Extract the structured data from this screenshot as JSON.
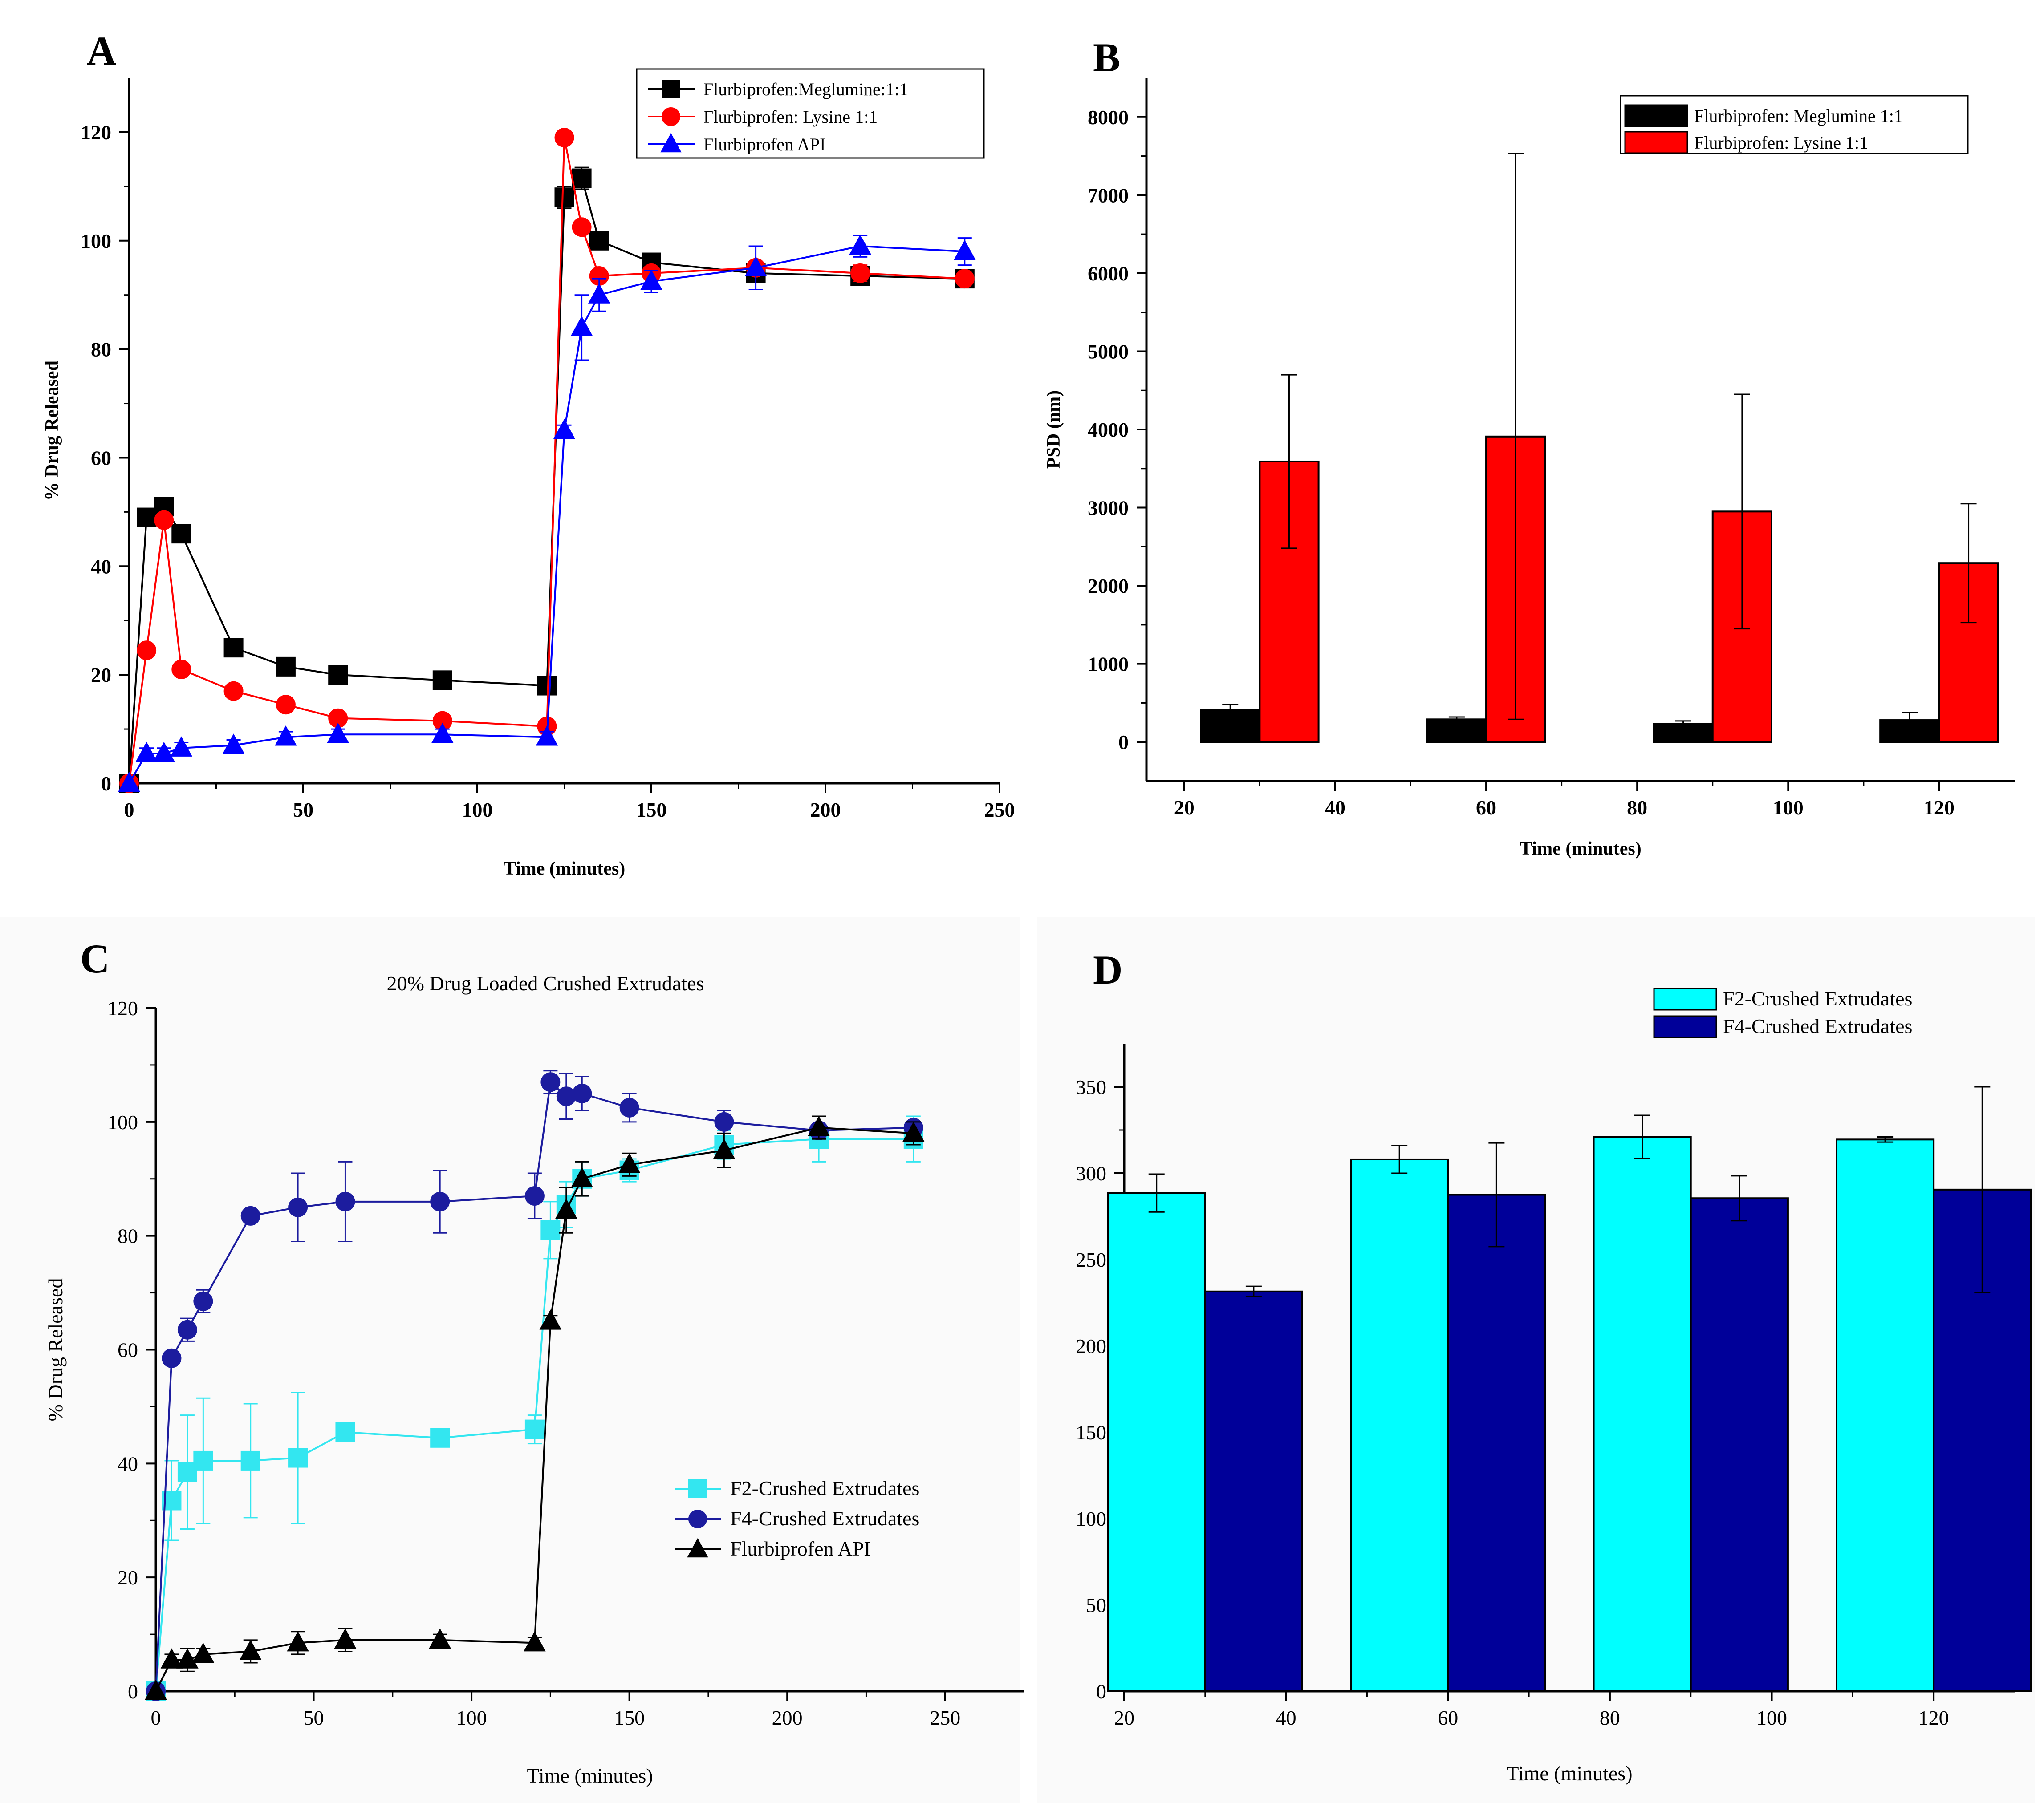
{
  "chart_data": [
    {
      "panel": "A",
      "type": "line",
      "title": "",
      "xlabel": "Time (minutes)",
      "ylabel": "% Drug Released",
      "xlim": [
        0,
        250
      ],
      "ylim": [
        0,
        130
      ],
      "xticks": [
        "0",
        "50",
        "100",
        "150",
        "200",
        "250"
      ],
      "yticks": [
        "0",
        "20",
        "40",
        "60",
        "80",
        "100",
        "120"
      ],
      "xtick_values": [
        0,
        50,
        100,
        150,
        200,
        250
      ],
      "ytick_values": [
        0,
        20,
        40,
        60,
        80,
        100,
        120
      ],
      "legend_position": "top-right",
      "series": [
        {
          "name": "Flurbiprofen:Meglumine:1:1",
          "color": "#000000",
          "marker": "square",
          "x": [
            0,
            5,
            10,
            15,
            30,
            45,
            60,
            90,
            120,
            125,
            130,
            135,
            150,
            180,
            210,
            240
          ],
          "y": [
            0,
            49,
            51,
            46,
            25,
            21.5,
            20,
            19,
            18,
            108,
            111.5,
            100,
            96,
            94,
            93.5,
            93
          ],
          "err": [
            0,
            1.5,
            1.5,
            1.5,
            1,
            1,
            1,
            1,
            1,
            2,
            2,
            1.5,
            1.5,
            1.5,
            1,
            1
          ]
        },
        {
          "name": "Flurbiprofen: Lysine 1:1",
          "color": "#ff0000",
          "marker": "circle",
          "x": [
            0,
            5,
            10,
            15,
            30,
            45,
            60,
            90,
            120,
            125,
            130,
            135,
            150,
            180,
            210,
            240
          ],
          "y": [
            0,
            24.5,
            48.5,
            21,
            17,
            14.5,
            12,
            11.5,
            10.5,
            119,
            102.5,
            93.5,
            94,
            95,
            94,
            93
          ],
          "err": [
            0,
            1,
            1,
            1,
            1,
            1,
            1,
            1,
            1,
            1,
            1,
            1,
            1,
            1,
            1.5,
            1
          ]
        },
        {
          "name": "Flurbiprofen API",
          "color": "#0000ff",
          "marker": "triangle",
          "x": [
            0,
            5,
            10,
            15,
            30,
            45,
            60,
            90,
            120,
            125,
            130,
            135,
            150,
            180,
            210,
            240
          ],
          "y": [
            0,
            5.5,
            5.5,
            6.5,
            7,
            8.5,
            9,
            9,
            8.5,
            65,
            84,
            90,
            92.5,
            95,
            99,
            98
          ],
          "err": [
            0,
            1,
            1,
            1,
            1,
            1,
            1,
            1,
            1,
            1,
            6,
            3,
            2,
            4,
            2,
            2.5
          ]
        }
      ]
    },
    {
      "panel": "B",
      "type": "bar",
      "title": "",
      "xlabel": "Time (minutes)",
      "ylabel": "PSD (nm)",
      "ylim": [
        -500,
        8500
      ],
      "xlim": [
        15,
        130
      ],
      "xticks": [
        "20",
        "40",
        "60",
        "80",
        "100",
        "120"
      ],
      "yticks": [
        "0",
        "1000",
        "2000",
        "3000",
        "4000",
        "5000",
        "6000",
        "7000",
        "8000"
      ],
      "xtick_values": [
        20,
        40,
        60,
        80,
        100,
        120
      ],
      "ytick_values": [
        0,
        1000,
        2000,
        3000,
        4000,
        5000,
        6000,
        7000,
        8000
      ],
      "legend_position": "top-right",
      "categories": [
        30,
        60,
        90,
        120
      ],
      "series": [
        {
          "name": "Flurbiprofen: Meglumine 1:1",
          "color": "#000000",
          "values": [
            410,
            290,
            230,
            280
          ],
          "err": [
            70,
            30,
            40,
            100
          ]
        },
        {
          "name": "Flurbiprofen: Lysine 1:1",
          "color": "#ff0000",
          "values": [
            3590,
            3910,
            2950,
            2290
          ],
          "err": [
            1110,
            3620,
            1500,
            760
          ]
        }
      ]
    },
    {
      "panel": "C",
      "type": "line",
      "title": "20% Drug Loaded Crushed Extrudates",
      "xlabel": "Time (minutes)",
      "ylabel": "% Drug Released",
      "xlim": [
        0,
        275
      ],
      "ylim": [
        0,
        120
      ],
      "xticks": [
        "0",
        "50",
        "100",
        "150",
        "200",
        "250"
      ],
      "yticks": [
        "0",
        "20",
        "40",
        "60",
        "80",
        "100",
        "120"
      ],
      "xtick_values": [
        0,
        50,
        100,
        150,
        200,
        250
      ],
      "ytick_values": [
        0,
        20,
        40,
        60,
        80,
        100,
        120
      ],
      "legend_position": "bottom-right",
      "series": [
        {
          "name": "F2-Crushed Extrudates",
          "color": "#33e6f0",
          "marker": "square",
          "x": [
            0,
            5,
            10,
            15,
            30,
            45,
            60,
            90,
            120,
            125,
            130,
            135,
            150,
            180,
            210,
            240
          ],
          "y": [
            0,
            33.5,
            38.5,
            40.5,
            40.5,
            41,
            45.5,
            44.5,
            46,
            81,
            85.5,
            90,
            91.5,
            96,
            97,
            97
          ],
          "err": [
            0,
            7,
            10,
            11,
            10,
            11.5,
            1,
            1.5,
            2.5,
            5,
            4,
            3,
            2,
            2.5,
            4,
            4
          ]
        },
        {
          "name": "F4-Crushed Extrudates",
          "color": "#1c1c9e",
          "marker": "circle",
          "x": [
            0,
            5,
            10,
            15,
            30,
            45,
            60,
            90,
            120,
            125,
            130,
            135,
            150,
            180,
            210,
            240
          ],
          "y": [
            0,
            58.5,
            63.5,
            68.5,
            83.5,
            85,
            86,
            86,
            87,
            107,
            104.5,
            105,
            102.5,
            100,
            98.5,
            99
          ],
          "err": [
            0,
            1,
            2,
            2,
            1,
            6,
            7,
            5.5,
            4,
            2,
            4,
            3,
            2.5,
            2,
            1,
            1
          ]
        },
        {
          "name": "Flurbiprofen API",
          "color": "#000000",
          "marker": "triangle",
          "x": [
            0,
            5,
            10,
            15,
            30,
            45,
            60,
            90,
            120,
            125,
            130,
            135,
            150,
            180,
            210,
            240
          ],
          "y": [
            0,
            5.5,
            5.5,
            6.5,
            7,
            8.5,
            9,
            9,
            8.5,
            65,
            84.5,
            90,
            92.5,
            95,
            99,
            98
          ],
          "err": [
            0,
            1,
            2,
            1,
            2,
            2,
            2,
            1,
            1,
            1,
            4,
            3,
            2,
            3,
            2,
            2
          ]
        }
      ]
    },
    {
      "panel": "D",
      "type": "bar",
      "title": "",
      "xlabel": "Time (minutes)",
      "ylabel": "",
      "ylim": [
        0,
        375
      ],
      "xlim": [
        20,
        130
      ],
      "xticks": [
        "20",
        "40",
        "60",
        "80",
        "100",
        "120"
      ],
      "yticks": [
        "0",
        "50",
        "100",
        "150",
        "200",
        "250",
        "300",
        "350"
      ],
      "xtick_values": [
        20,
        40,
        60,
        80,
        100,
        120
      ],
      "ytick_values": [
        0,
        50,
        100,
        150,
        200,
        250,
        300,
        350
      ],
      "legend_position": "top-right",
      "categories": [
        30,
        60,
        90,
        120
      ],
      "series": [
        {
          "name": "F2-Crushed Extrudates",
          "color": "#00ffff",
          "values": [
            288.5,
            308,
            321,
            319.5
          ],
          "err": [
            11,
            8,
            12.5,
            1.5
          ]
        },
        {
          "name": "F4-Crushed Extrudates",
          "color": "#000099",
          "values": [
            231.5,
            287.5,
            285.5,
            290.5
          ],
          "err": [
            3,
            30,
            13,
            59.5
          ]
        }
      ]
    }
  ],
  "panel_letters": [
    "A",
    "B",
    "C",
    "D"
  ]
}
